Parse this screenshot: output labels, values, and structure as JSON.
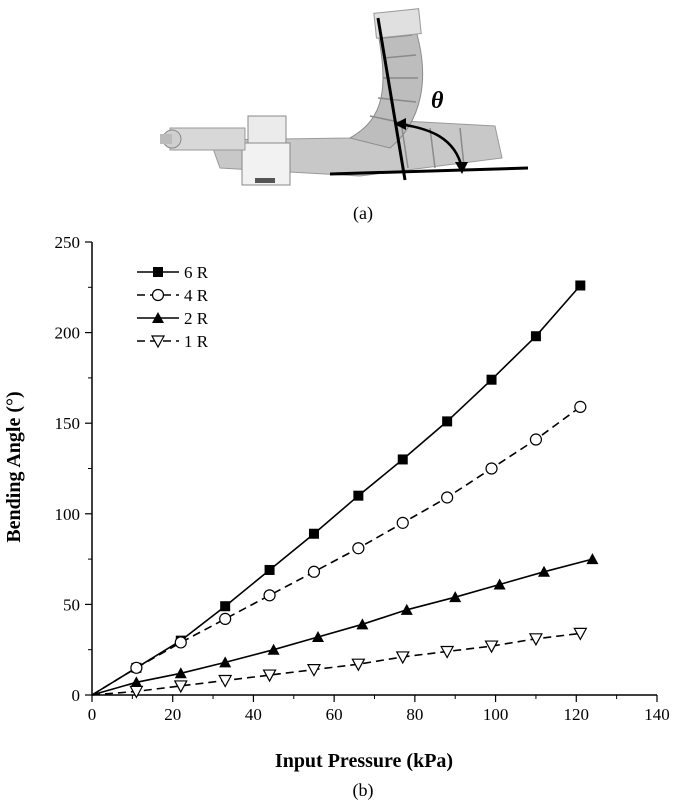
{
  "photo": {
    "angle_symbol": "θ",
    "caption": "(a)"
  },
  "figure_caption": "(b)",
  "chart_data": {
    "type": "line",
    "xlabel": "Input Pressure (kPa)",
    "ylabel": "Bending Angle (°)",
    "xlim": [
      0,
      140
    ],
    "ylim": [
      0,
      250
    ],
    "xticks": [
      0,
      20,
      40,
      60,
      80,
      100,
      120,
      140
    ],
    "yticks": [
      0,
      50,
      100,
      150,
      200,
      250
    ],
    "grid": false,
    "legend_position": "top-left",
    "series": [
      {
        "name": "6 R",
        "marker": "square-filled",
        "line": "solid",
        "x": [
          0,
          11,
          22,
          33,
          44,
          55,
          66,
          77,
          88,
          99,
          110,
          121
        ],
        "y": [
          0,
          15,
          30,
          49,
          69,
          89,
          110,
          130,
          151,
          174,
          198,
          226
        ]
      },
      {
        "name": "4 R",
        "marker": "circle-open",
        "line": "dashed",
        "x": [
          0,
          11,
          22,
          33,
          44,
          55,
          66,
          77,
          88,
          99,
          110,
          121
        ],
        "y": [
          0,
          15,
          29,
          42,
          55,
          68,
          81,
          95,
          109,
          125,
          141,
          159
        ]
      },
      {
        "name": "2 R",
        "marker": "triangle-up-filled",
        "line": "solid",
        "x": [
          0,
          11,
          22,
          33,
          45,
          56,
          67,
          78,
          90,
          101,
          112,
          124
        ],
        "y": [
          0,
          7,
          12,
          18,
          25,
          32,
          39,
          47,
          54,
          61,
          68,
          75
        ]
      },
      {
        "name": "1 R",
        "marker": "triangle-down-open",
        "line": "dashed",
        "x": [
          0,
          11,
          22,
          33,
          44,
          55,
          66,
          77,
          88,
          99,
          110,
          121
        ],
        "y": [
          0,
          2,
          5,
          8,
          11,
          14,
          17,
          21,
          24,
          27,
          31,
          34
        ]
      }
    ]
  }
}
